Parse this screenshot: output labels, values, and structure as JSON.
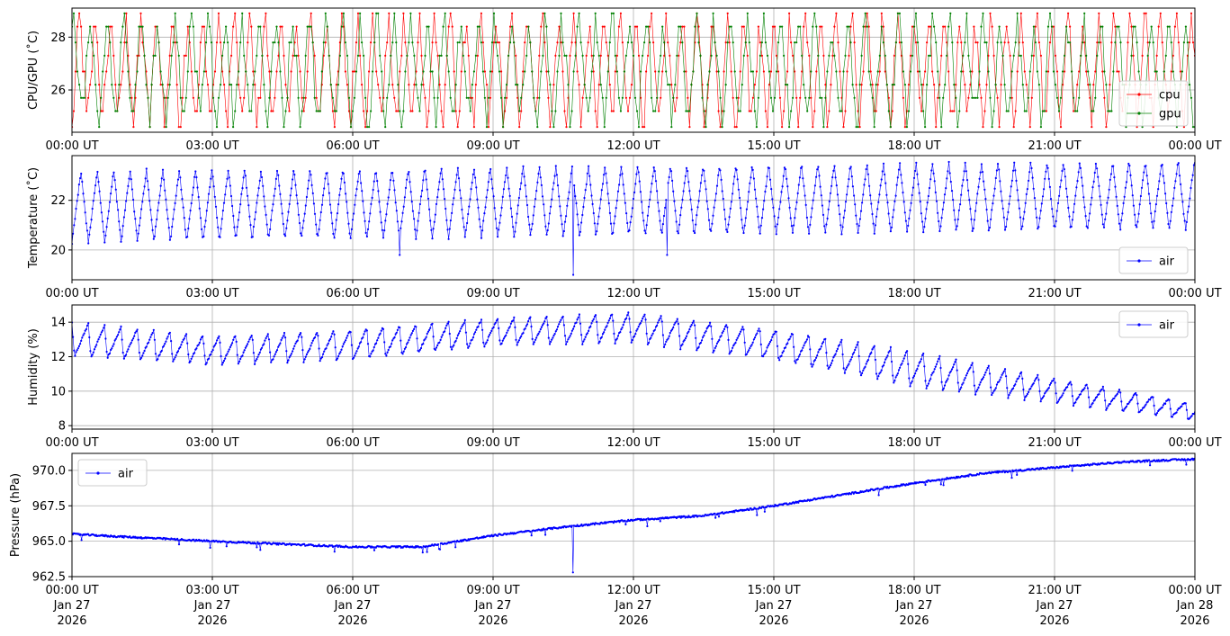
{
  "chart_data": [
    {
      "type": "line",
      "ylabel": "CPU/GPU (˚C)",
      "ylim": [
        24.4,
        29.1
      ],
      "yticks": [
        26,
        28
      ],
      "grid": true,
      "legend": "bottom-right",
      "x_start": "2026-01-27 00:00 UT",
      "x_end": "2026-01-28 00:00 UT",
      "series": [
        {
          "name": "cpu",
          "color": "#ff0000",
          "levels": [
            24.6,
            25.2,
            25.7,
            26.2,
            26.7,
            27.3,
            27.8,
            28.4,
            28.9
          ],
          "period_hours": 0.33
        },
        {
          "name": "gpu",
          "color": "#008000",
          "levels": [
            24.6,
            25.2,
            25.7,
            26.2,
            26.7,
            27.3,
            27.8,
            28.4,
            28.9
          ],
          "period_hours": 0.36
        }
      ]
    },
    {
      "type": "line",
      "ylabel": "Temperature (˚C)",
      "ylim": [
        18.8,
        23.8
      ],
      "yticks": [
        20,
        22
      ],
      "grid": true,
      "legend": "bottom-right",
      "series": [
        {
          "name": "air",
          "color": "#0000ff",
          "period_hours": 0.35,
          "min_start": 20.3,
          "max_start": 23.2,
          "min_end": 20.8,
          "max_end": 23.6,
          "outliers": [
            {
              "hour": 10.7,
              "value": 19.0
            },
            {
              "hour": 7.0,
              "value": 19.8
            },
            {
              "hour": 12.7,
              "value": 19.8
            }
          ]
        }
      ]
    },
    {
      "type": "line",
      "ylabel": "Humidity (%)",
      "ylim": [
        7.8,
        15.0
      ],
      "yticks": [
        8,
        10,
        12,
        14
      ],
      "grid": true,
      "legend": "top-right",
      "series": [
        {
          "name": "air",
          "color": "#0000ff",
          "period_hours": 0.35,
          "trend_min": [
            [
              0,
              12.0
            ],
            [
              3,
              11.5
            ],
            [
              6,
              11.8
            ],
            [
              9,
              12.6
            ],
            [
              12,
              12.8
            ],
            [
              15,
              11.8
            ],
            [
              18,
              10.2
            ],
            [
              21,
              9.3
            ],
            [
              24,
              8.3
            ]
          ],
          "trend_max": [
            [
              0,
              14.0
            ],
            [
              3,
              13.2
            ],
            [
              6,
              13.6
            ],
            [
              9,
              14.2
            ],
            [
              12,
              14.6
            ],
            [
              15,
              13.6
            ],
            [
              18,
              12.3
            ],
            [
              21,
              10.8
            ],
            [
              24,
              9.3
            ]
          ]
        }
      ]
    },
    {
      "type": "line",
      "ylabel": "Pressure (hPa)",
      "ylim": [
        962.5,
        971.2
      ],
      "yticks": [
        962.5,
        965.0,
        967.5,
        970.0
      ],
      "ytick_labels": [
        "962.5",
        "965.0",
        "967.5",
        "970.0"
      ],
      "grid": true,
      "legend": "top-left",
      "series": [
        {
          "name": "air",
          "color": "#0000ff",
          "trend": [
            [
              0,
              965.5
            ],
            [
              3,
              965.0
            ],
            [
              6,
              964.6
            ],
            [
              7.5,
              964.6
            ],
            [
              9,
              965.4
            ],
            [
              10.5,
              966.0
            ],
            [
              12,
              966.5
            ],
            [
              13.5,
              966.8
            ],
            [
              15,
              967.5
            ],
            [
              16.5,
              968.3
            ],
            [
              18,
              969.1
            ],
            [
              19.5,
              969.8
            ],
            [
              21,
              970.2
            ],
            [
              22.5,
              970.6
            ],
            [
              24,
              970.8
            ]
          ],
          "outliers": [
            {
              "hour": 10.7,
              "value": 962.8
            }
          ]
        }
      ]
    }
  ],
  "x_ticks": [
    "00:00 UT",
    "03:00 UT",
    "06:00 UT",
    "09:00 UT",
    "12:00 UT",
    "15:00 UT",
    "18:00 UT",
    "21:00 UT",
    "00:00 UT"
  ],
  "x_ticks_bottom": [
    {
      "time": "00:00 UT",
      "day": "Jan 27",
      "year": "2026"
    },
    {
      "time": "03:00 UT",
      "day": "Jan 27",
      "year": "2026"
    },
    {
      "time": "06:00 UT",
      "day": "Jan 27",
      "year": "2026"
    },
    {
      "time": "09:00 UT",
      "day": "Jan 27",
      "year": "2026"
    },
    {
      "time": "12:00 UT",
      "day": "Jan 27",
      "year": "2026"
    },
    {
      "time": "15:00 UT",
      "day": "Jan 27",
      "year": "2026"
    },
    {
      "time": "18:00 UT",
      "day": "Jan 27",
      "year": "2026"
    },
    {
      "time": "21:00 UT",
      "day": "Jan 27",
      "year": "2026"
    },
    {
      "time": "00:00 UT",
      "day": "Jan 28",
      "year": "2026"
    }
  ]
}
